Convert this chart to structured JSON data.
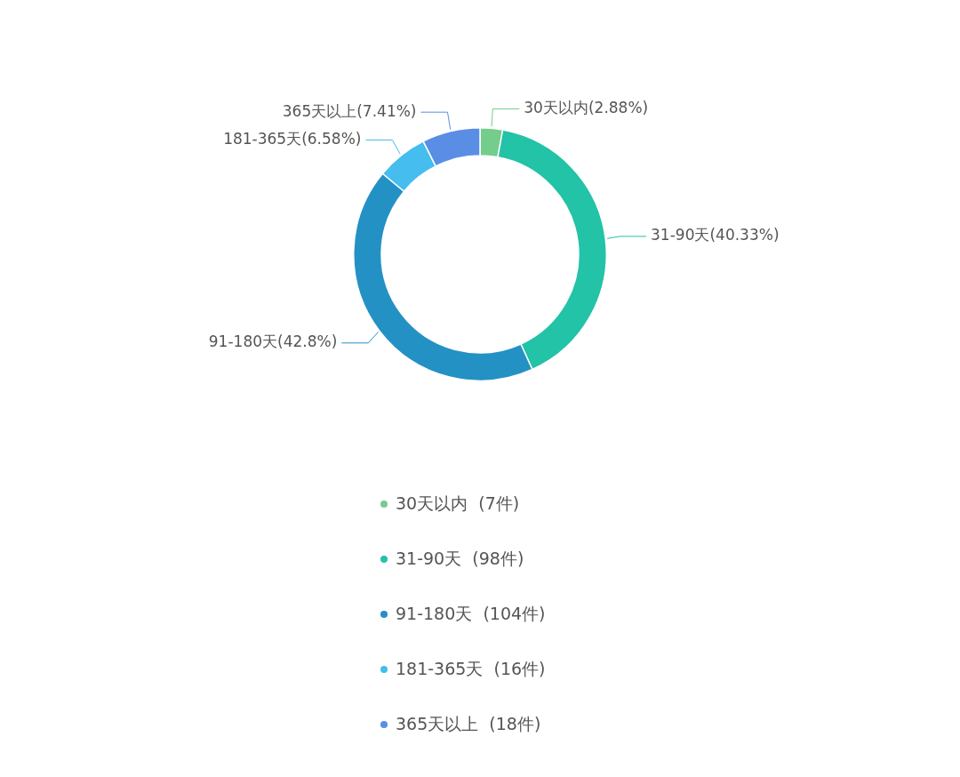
{
  "chart_data": {
    "type": "donut",
    "categories": [
      "30天以内  (7件)",
      "31-90天  (98件)",
      "91-180天  (104件)",
      "181-365天  (16件)",
      "365天以上  (18件)"
    ],
    "values": [
      2.88,
      40.33,
      42.8,
      6.58,
      7.41
    ],
    "colors": [
      "#74cd8b",
      "#22c3a6",
      "#2491c4",
      "#45bdee",
      "#5a8ee4"
    ],
    "value_labels": [
      "30天以内(2.88%)",
      "31-90天(40.33%)",
      "91-180天(42.8%)",
      "181-365天(6.58%)",
      "365天以上(7.41%)"
    ],
    "legend": "bottom"
  }
}
